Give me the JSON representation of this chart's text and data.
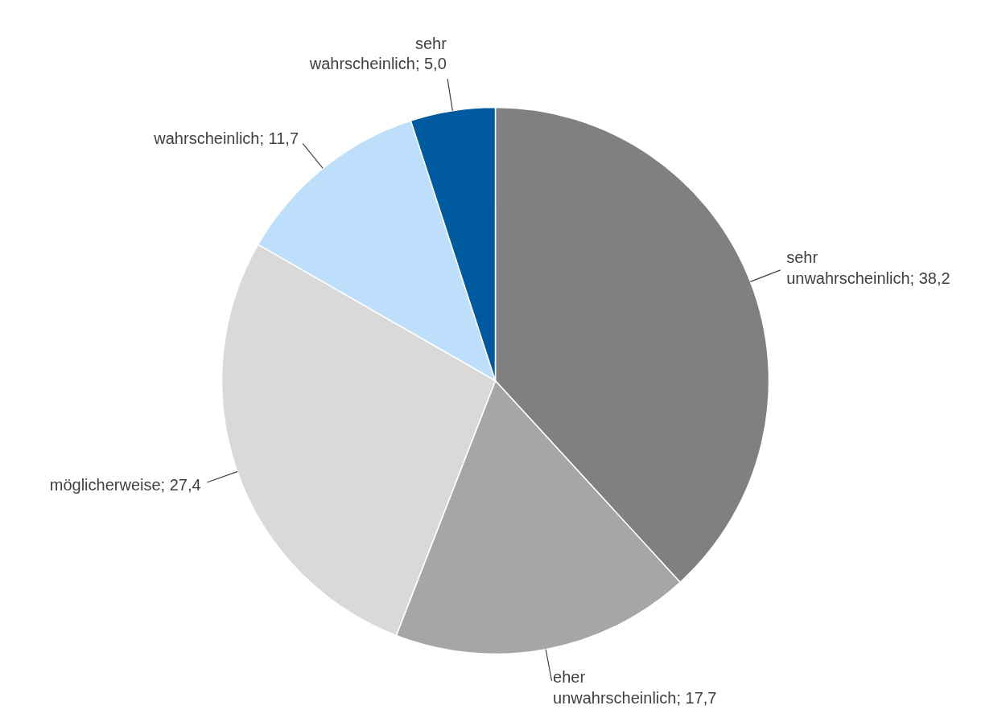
{
  "chart_data": {
    "type": "pie",
    "categories": [
      "sehr unwahrscheinlich",
      "eher unwahrscheinlich",
      "möglicherweise",
      "wahrscheinlich",
      "sehr wahrscheinlich"
    ],
    "values": [
      38.2,
      17.7,
      27.4,
      11.7,
      5.0
    ],
    "value_labels": [
      "38,2",
      "17,7",
      "27,4",
      "11,7",
      "5,0"
    ],
    "colors": [
      "#808080",
      "#a6a6a6",
      "#d9d9d9",
      "#bddffb",
      "#005aa0"
    ]
  }
}
